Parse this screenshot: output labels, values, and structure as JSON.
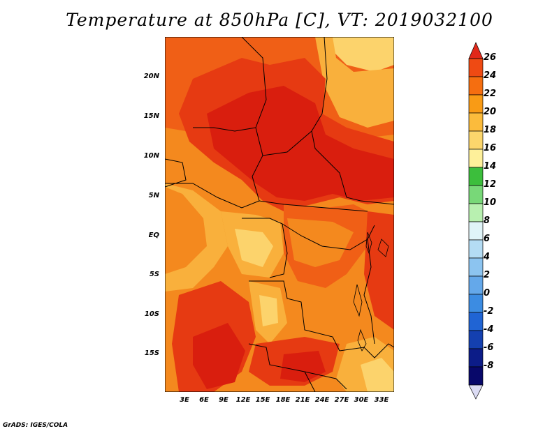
{
  "title": "Temperature at 850hPa [C], VT: 2019032100",
  "credit": "GrADS: IGES/COLA",
  "map": {
    "region": "Central Africa",
    "lat_labels": [
      "20N",
      "15N",
      "10N",
      "5N",
      "EQ",
      "5S",
      "10S",
      "15S"
    ],
    "lon_labels": [
      "3E",
      "6E",
      "9E",
      "12E",
      "15E",
      "18E",
      "21E",
      "24E",
      "27E",
      "30E",
      "33E"
    ],
    "lat_range": [
      -19.5,
      25
    ],
    "lon_range": [
      0,
      35
    ]
  },
  "colorbar": {
    "levels": [
      "26",
      "24",
      "22",
      "20",
      "18",
      "16",
      "14",
      "12",
      "10",
      "8",
      "6",
      "4",
      "2",
      "0",
      "-2",
      "-4",
      "-6",
      "-8"
    ],
    "colors": [
      "#e1281a",
      "#ef4a13",
      "#f56e10",
      "#f99b15",
      "#fbbb3c",
      "#fcd66c",
      "#fef09a",
      "#3cbe3c",
      "#78d878",
      "#b8f0b0",
      "#e0f4f8",
      "#b4dcf4",
      "#8cc4f0",
      "#64a8ea",
      "#3c8ce2",
      "#2064d4",
      "#1440b0",
      "#0c1c88",
      "#08086a",
      "#dcdcf4"
    ]
  },
  "legend_colors": {
    "very_hot": "#d91e0e",
    "hot": "#e63a12",
    "warm": "#f05f16",
    "mild": "#f4891e",
    "cool": "#f9b03c",
    "cooler": "#fcd36c"
  }
}
